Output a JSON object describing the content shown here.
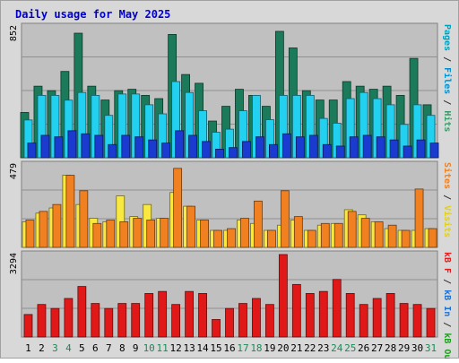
{
  "chart_data": {
    "title": "Daily usage for May 2025",
    "type": "bar",
    "days": [
      "1",
      "2",
      "3",
      "4",
      "5",
      "6",
      "7",
      "8",
      "9",
      "10",
      "11",
      "12",
      "13",
      "14",
      "15",
      "16",
      "17",
      "18",
      "19",
      "20",
      "21",
      "22",
      "23",
      "24",
      "25",
      "26",
      "27",
      "28",
      "29",
      "30",
      "31"
    ],
    "weekend_days": [
      "3",
      "4",
      "10",
      "11",
      "17",
      "18",
      "24",
      "25",
      "31"
    ],
    "panels": [
      {
        "id": "hits",
        "ymax_label": "852",
        "ymax": 852,
        "right_label": [
          {
            "text": "Pages",
            "color": "#00a0c0"
          },
          {
            "text": " / ",
            "color": "#333333"
          },
          {
            "text": "Files",
            "color": "#0090d0"
          },
          {
            "text": " / ",
            "color": "#333333"
          },
          {
            "text": "Hits",
            "color": "#3a9a6a"
          }
        ],
        "series": [
          {
            "name": "Hits",
            "color": "#1a7a5a",
            "values": [
              295,
              466,
              437,
              562,
              811,
              466,
              376,
              437,
              446,
              406,
              385,
              803,
              542,
              485,
              239,
              335,
              446,
              406,
              335,
              823,
              715,
              437,
              376,
              376,
              496,
              466,
              446,
              466,
              406,
              647,
              345
            ]
          },
          {
            "name": "Files",
            "color": "#22d0f0",
            "values": [
              246,
              406,
              406,
              375,
              425,
              406,
              276,
              415,
              415,
              345,
              286,
              496,
              425,
              306,
              166,
              186,
              306,
              406,
              248,
              406,
              406,
              406,
              256,
              225,
              385,
              425,
              385,
              345,
              217,
              345,
              276
            ]
          },
          {
            "name": "Pages",
            "color": "#1a3ad0",
            "values": [
              96,
              146,
              136,
              176,
              156,
              146,
              86,
              146,
              136,
              116,
              96,
              176,
              146,
              106,
              56,
              66,
              106,
              136,
              86,
              156,
              136,
              146,
              86,
              76,
              136,
              146,
              136,
              116,
              76,
              116,
              96
            ]
          }
        ]
      },
      {
        "id": "visits",
        "ymax_label": "479",
        "ymax": 479,
        "right_label": [
          {
            "text": "Sites",
            "color": "#f08020"
          },
          {
            "text": " / ",
            "color": "#333333"
          },
          {
            "text": "Visits",
            "color": "#e0d020"
          }
        ],
        "series": [
          {
            "name": "Visits",
            "color": "#f8e840",
            "values": [
              149,
              199,
              229,
              419,
              249,
              169,
              149,
              299,
              179,
              249,
              169,
              319,
              239,
              159,
              99,
              99,
              159,
              139,
              99,
              129,
              159,
              99,
              129,
              139,
              219,
              189,
              149,
              109,
              99,
              99,
              109
            ]
          },
          {
            "name": "Sites",
            "color": "#f08020",
            "values": [
              159,
              209,
              249,
              419,
              329,
              139,
              159,
              149,
              169,
              159,
              169,
              459,
              239,
              159,
              99,
              109,
              169,
              269,
              99,
              329,
              179,
              99,
              139,
              139,
              209,
              169,
              149,
              129,
              99,
              339,
              109
            ]
          }
        ]
      },
      {
        "id": "kbytes",
        "ymax_label": "3294",
        "ymax": 3294,
        "right_label": [
          {
            "text": "kB F",
            "color": "#e02020"
          },
          {
            "text": " / ",
            "color": "#333333"
          },
          {
            "text": "kB In",
            "color": "#2070d0"
          },
          {
            "text": " / ",
            "color": "#333333"
          },
          {
            "text": "kB Out",
            "color": "#20a020"
          }
        ],
        "series": [
          {
            "name": "kB F",
            "color": "#e01818",
            "values": [
              900,
              1300,
              1140,
              1540,
              2020,
              1340,
              1140,
              1340,
              1340,
              1740,
              1820,
              1300,
              1820,
              1740,
              700,
              1140,
              1340,
              1540,
              1300,
              3294,
              2100,
              1740,
              1820,
              2300,
              1740,
              1300,
              1540,
              1740,
              1340,
              1300,
              1140
            ]
          }
        ]
      }
    ]
  }
}
